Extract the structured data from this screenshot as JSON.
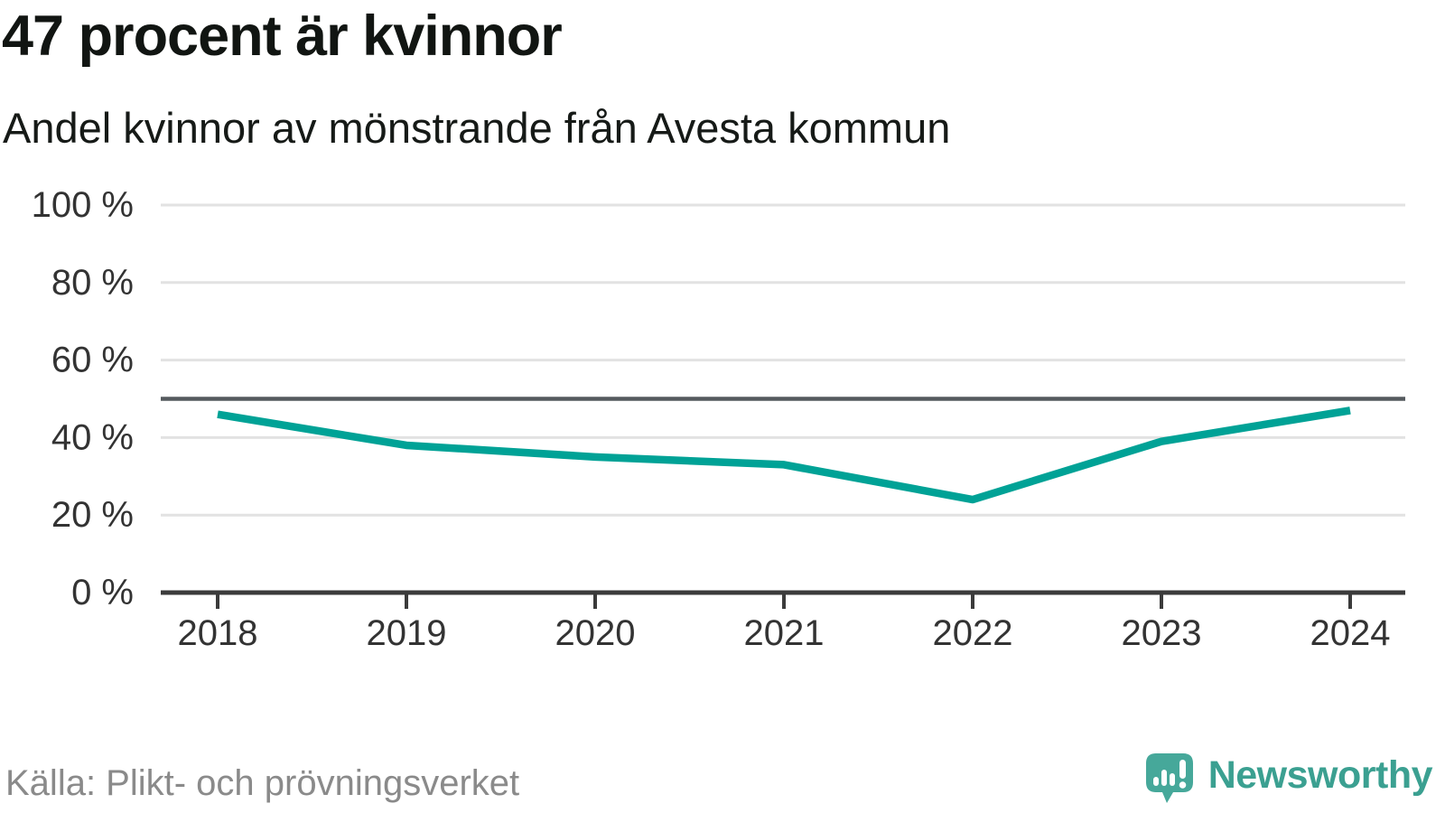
{
  "chart_data": {
    "type": "line",
    "title": "47 procent är kvinnor",
    "subtitle": "Andel kvinnor av mönstrande från Avesta kommun",
    "source": "Källa: Plikt- och prövningsverket",
    "x": [
      2018,
      2019,
      2020,
      2021,
      2022,
      2023,
      2024
    ],
    "xtick_labels": [
      "2018",
      "2019",
      "2020",
      "2021",
      "2022",
      "2023",
      "2024"
    ],
    "series": [
      {
        "name": "Andel kvinnor",
        "values": [
          46,
          38,
          35,
          33,
          24,
          39,
          47
        ],
        "unit": "%"
      }
    ],
    "ylim": [
      0,
      100
    ],
    "yticks": [
      0,
      20,
      40,
      60,
      80,
      100
    ],
    "ytick_labels": [
      "0 %",
      "20 %",
      "40 %",
      "60 %",
      "80 %",
      "100 %"
    ],
    "reference_line": 50,
    "grid": true,
    "legend_position": "none"
  },
  "brand": {
    "name": "Newsworthy"
  },
  "colors": {
    "line": "#00a296",
    "grid": "#e2e2e2",
    "refline": "#555a5e",
    "axis": "#3b3b3b",
    "tick_text": "#333333",
    "brand_teal": "#3ba091",
    "bubble_teal": "#46a89a"
  }
}
